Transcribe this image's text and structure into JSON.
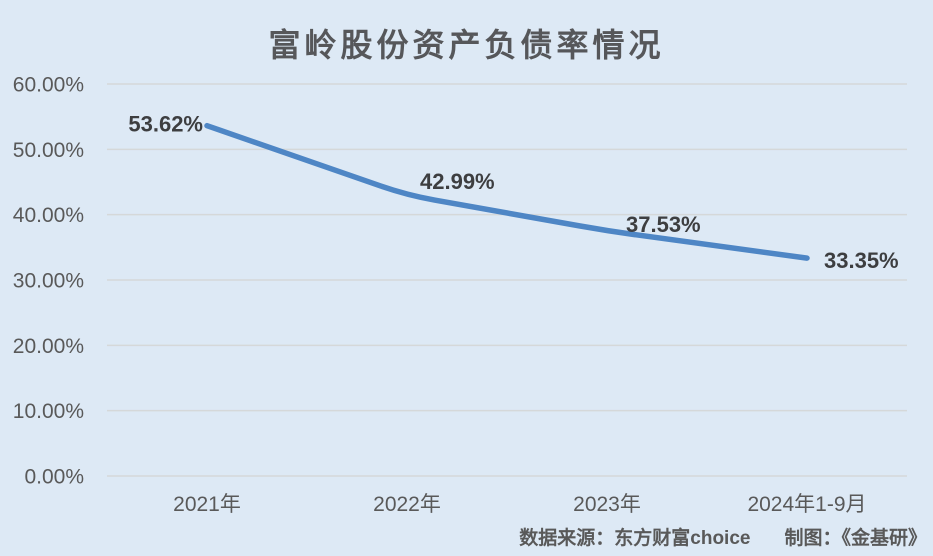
{
  "chart_data": {
    "type": "line",
    "title": "富岭股份资产负债率情况",
    "categories": [
      "2021年",
      "2022年",
      "2023年",
      "2024年1-9月"
    ],
    "series": [
      {
        "name": "资产负债率",
        "values": [
          53.62,
          42.99,
          37.53,
          33.35
        ],
        "point_labels": [
          "53.62%",
          "42.99%",
          "37.53%",
          "33.35%"
        ]
      }
    ],
    "xlabel": "",
    "ylabel": "",
    "ylim": [
      0,
      60
    ],
    "y_ticks": [
      {
        "value": 60,
        "label": "60.00%"
      },
      {
        "value": 50,
        "label": "50.00%"
      },
      {
        "value": 40,
        "label": "40.00%"
      },
      {
        "value": 30,
        "label": "30.00%"
      },
      {
        "value": 20,
        "label": "20.00%"
      },
      {
        "value": 10,
        "label": "10.00%"
      },
      {
        "value": 0,
        "label": "0.00%"
      }
    ],
    "grid": "horizontal",
    "legend": "none",
    "colors": {
      "background": "#dde9f5",
      "gridline": "#d5d8d9",
      "line": "#4e86c5",
      "axis_text": "#595959",
      "label_text": "#3d3e40",
      "title_text": "#56575a"
    }
  },
  "footer": {
    "source": "数据来源：东方财富choice",
    "credit": "制图：《金基研》"
  }
}
